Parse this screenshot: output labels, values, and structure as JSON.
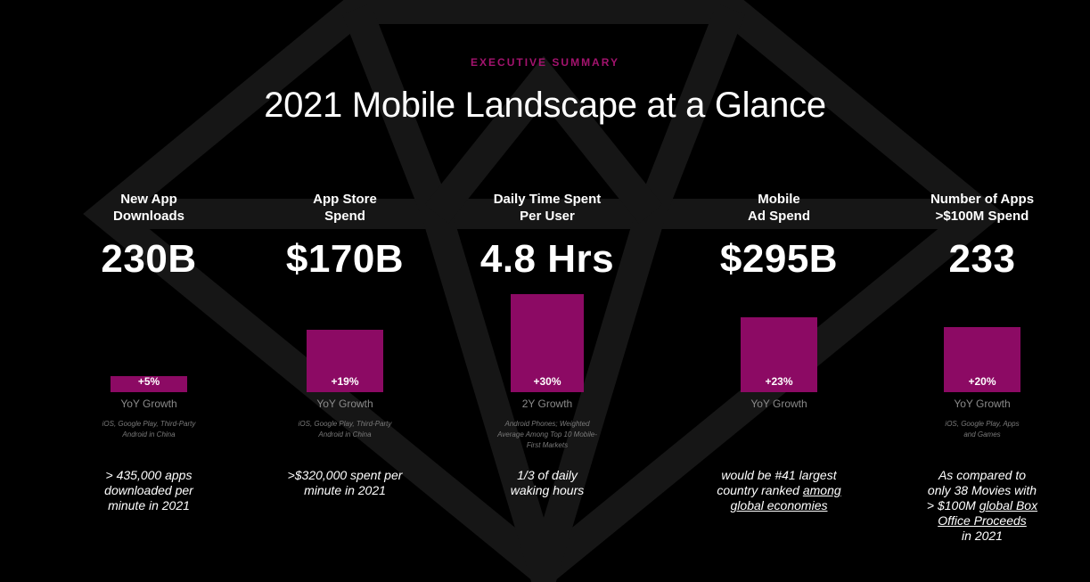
{
  "header": {
    "eyebrow": "EXECUTIVE SUMMARY",
    "title": "2021 Mobile Landscape at a Glance"
  },
  "colors": {
    "accent": "#8c0a64",
    "eyebrow": "#a3136e",
    "background": "#000000",
    "watermark": "#161616"
  },
  "chart_data": {
    "type": "bar",
    "categories": [
      "New App Downloads",
      "App Store Spend",
      "Daily Time Spent Per User",
      "Mobile Ad Spend",
      "Number of Apps >$100M Spend"
    ],
    "values": [
      5,
      19,
      30,
      23,
      20
    ],
    "unit": "%"
  },
  "metrics": [
    {
      "label": "New App\nDownloads",
      "value": "230B",
      "bar_label": "+5%",
      "growth_label": "YoY Growth",
      "source": "iOS, Google Play, Third-Party\nAndroid in China",
      "note": "> 435,000 apps\ndownloaded per\nminute in 2021",
      "note_underline": ""
    },
    {
      "label": "App Store\nSpend",
      "value": "$170B",
      "bar_label": "+19%",
      "growth_label": "YoY Growth",
      "source": "iOS, Google Play, Third-Party\nAndroid in China",
      "note": ">$320,000 spent per\nminute in 2021",
      "note_underline": ""
    },
    {
      "label": "Daily Time Spent\nPer User",
      "value": "4.8 Hrs",
      "bar_label": "+30%",
      "growth_label": "2Y Growth",
      "source": "Android Phones; Weighted\nAverage Among Top 10 Mobile-\nFirst  Markets",
      "note": "1/3 of daily\nwaking hours",
      "note_underline": ""
    },
    {
      "label": "Mobile\nAd Spend",
      "value": "$295B",
      "bar_label": "+23%",
      "growth_label": "YoY Growth",
      "source": "",
      "note": "would be #41 largest\ncountry ranked ",
      "note_underline": "among \nglobal economies"
    },
    {
      "label": "Number of Apps\n>$100M Spend",
      "value": "233",
      "bar_label": "+20%",
      "growth_label": "YoY Growth",
      "source": "iOS, Google Play, Apps\nand Games",
      "note": "As compared to\nonly 38 Movies with\n> $100M ",
      "note_underline": "global Box \nOffice Proceeds",
      "note_tail": "\nin 2021"
    }
  ]
}
